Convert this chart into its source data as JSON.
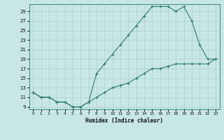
{
  "xlabel": "Humidex (Indice chaleur)",
  "bg_color": "#c8e6e6",
  "grid_color": "#a8d0d0",
  "line_color": "#2e7d6e",
  "xlim": [
    -0.5,
    23.5
  ],
  "ylim": [
    8.5,
    30.5
  ],
  "yticks": [
    9,
    11,
    13,
    15,
    17,
    19,
    21,
    23,
    25,
    27,
    29
  ],
  "xticks": [
    0,
    1,
    2,
    3,
    4,
    5,
    6,
    7,
    8,
    9,
    10,
    11,
    12,
    13,
    14,
    15,
    16,
    17,
    18,
    19,
    20,
    21,
    22,
    23
  ],
  "line1_x": [
    0,
    1,
    2,
    3,
    4,
    5,
    6,
    7,
    8,
    9,
    10,
    11,
    12,
    13,
    14,
    15,
    16,
    17,
    18,
    19,
    20,
    21,
    22,
    23
  ],
  "line1_y": [
    12,
    11,
    11,
    10,
    10,
    9,
    9,
    10,
    16,
    18,
    20,
    22,
    24,
    26,
    28,
    30,
    30,
    30,
    29,
    30,
    27,
    22,
    19,
    19
  ],
  "line2_x": [
    0,
    1,
    2,
    3,
    4,
    5,
    6,
    7,
    8,
    9,
    10,
    11,
    12,
    13,
    14,
    15,
    16,
    17,
    18,
    19,
    20,
    21,
    22,
    23
  ],
  "line2_y": [
    12,
    11,
    11,
    10,
    10,
    9,
    9,
    10,
    11,
    12,
    13,
    13.5,
    14,
    15,
    16,
    17,
    17,
    17.5,
    18,
    18,
    18,
    18,
    18,
    19
  ]
}
